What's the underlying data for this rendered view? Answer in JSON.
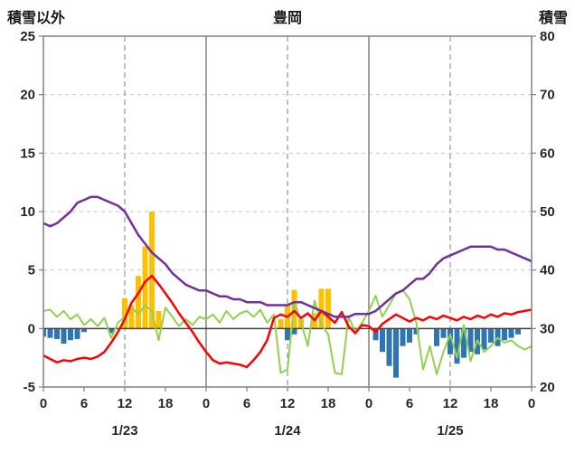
{
  "header": {
    "left_axis_title": "積雪以外",
    "chart_title": "豊岡",
    "right_axis_title": "積雪"
  },
  "colors": {
    "frame": "#808080",
    "midnight_line": "#808080",
    "noon_line": "#808080",
    "hgrid": "#C9C9C9",
    "zero_line": "#404040",
    "tick_label": "#262626",
    "orange_bar": "#FFC000",
    "blue_bar": "#2E75B6",
    "red_line": "#FF0000",
    "green_line": "#92D050",
    "purple_line": "#7030A0"
  },
  "chart_data": {
    "type": "bar+line combo, dual axis, 72-hour weather chart",
    "title": "豊岡",
    "left_axis": {
      "title": "積雪以外",
      "min": -5,
      "max": 25,
      "tick_values": [
        25,
        20,
        15,
        10,
        5,
        0,
        -5
      ],
      "tick_labels": [
        "25",
        "20",
        "15",
        "10",
        "5",
        "0",
        "-5"
      ]
    },
    "right_axis": {
      "title": "積雪",
      "min": 20,
      "max": 80,
      "tick_values": [
        80,
        70,
        60,
        50,
        40,
        30,
        20
      ],
      "tick_labels": [
        "80",
        "70",
        "60",
        "50",
        "40",
        "30",
        "20"
      ]
    },
    "x_axis": {
      "hours_span": 72,
      "tick_step": 6,
      "tick_hours": [
        0,
        6,
        12,
        18,
        24,
        30,
        36,
        42,
        48,
        54,
        60,
        66,
        72
      ],
      "tick_labels": [
        "0",
        "6",
        "12",
        "18",
        "0",
        "6",
        "12",
        "18",
        "0",
        "6",
        "12",
        "18",
        "0"
      ],
      "day_labels": [
        {
          "label": "1/23",
          "hour": 12
        },
        {
          "label": "1/24",
          "hour": 36
        },
        {
          "label": "1/25",
          "hour": 60
        }
      ],
      "noon_grid_hours": [
        12,
        36,
        60
      ],
      "midnight_grid_hours": [
        24,
        48
      ]
    },
    "series": [
      {
        "name": "orange_bars",
        "type": "bar",
        "axis": "left",
        "color": "#FFC000",
        "values": [
          null,
          null,
          null,
          null,
          null,
          null,
          null,
          null,
          null,
          null,
          null,
          null,
          2.6,
          2.0,
          4.5,
          7.0,
          10.0,
          1.5,
          null,
          null,
          null,
          null,
          null,
          null,
          null,
          null,
          null,
          null,
          null,
          null,
          null,
          null,
          null,
          null,
          null,
          0.8,
          2.0,
          3.3,
          0.8,
          null,
          1.3,
          3.4,
          3.4,
          null,
          null,
          null,
          null,
          null,
          null,
          null,
          null,
          null,
          null,
          null,
          null,
          null,
          null,
          null,
          null,
          null,
          null,
          null,
          null,
          null,
          null,
          null,
          null,
          null,
          null,
          null,
          null,
          null,
          null
        ]
      },
      {
        "name": "blue_bars",
        "type": "bar",
        "axis": "left",
        "color": "#2E75B6",
        "values": [
          -0.7,
          -0.8,
          -0.9,
          -1.3,
          -1.0,
          -0.9,
          -0.3,
          null,
          null,
          null,
          -0.4,
          null,
          null,
          null,
          null,
          null,
          null,
          null,
          null,
          null,
          null,
          null,
          null,
          null,
          null,
          null,
          null,
          null,
          null,
          null,
          null,
          null,
          null,
          null,
          null,
          null,
          -1.0,
          -0.5,
          null,
          null,
          null,
          null,
          null,
          null,
          null,
          null,
          null,
          null,
          null,
          -1.0,
          -2.0,
          -3.2,
          -4.2,
          -1.5,
          -1.2,
          -0.5,
          null,
          null,
          -1.5,
          -0.8,
          -2.2,
          -3.0,
          -2.5,
          -2.0,
          -2.2,
          -1.8,
          -1.2,
          -1.5,
          -1.0,
          -0.8,
          -0.5,
          null,
          null
        ]
      },
      {
        "name": "green_line",
        "type": "line",
        "axis": "left",
        "color": "#92D050",
        "values": [
          1.5,
          1.6,
          1.0,
          1.5,
          0.8,
          1.2,
          0.3,
          0.8,
          0.2,
          0.9,
          -0.8,
          0.5,
          1.0,
          1.8,
          1.2,
          2.0,
          1.5,
          -1.0,
          1.8,
          1.0,
          0.2,
          0.8,
          0.3,
          1.0,
          0.8,
          1.2,
          0.5,
          1.5,
          0.8,
          1.3,
          1.5,
          1.0,
          1.6,
          0.5,
          1.2,
          -3.8,
          -3.5,
          2.3,
          0.5,
          -1.5,
          2.4,
          0.3,
          -0.5,
          -3.8,
          -3.9,
          1.0,
          -0.3,
          0.5,
          1.5,
          2.8,
          1.0,
          2.0,
          3.0,
          3.3,
          2.5,
          0.5,
          -3.5,
          -1.5,
          -3.9,
          -2.0,
          -0.5,
          -2.5,
          0.3,
          -2.8,
          -1.0,
          -2.0,
          -1.5,
          -0.8,
          -1.2,
          -1.0,
          -1.5,
          -1.8,
          -1.5
        ]
      },
      {
        "name": "red_line",
        "type": "line",
        "axis": "left",
        "color": "#FF0000",
        "values": [
          -2.3,
          -2.6,
          -2.9,
          -2.7,
          -2.8,
          -2.6,
          -2.5,
          -2.6,
          -2.4,
          -2.0,
          -1.2,
          -0.3,
          0.8,
          2.2,
          3.0,
          4.0,
          4.5,
          3.8,
          3.0,
          2.2,
          1.3,
          0.5,
          -0.3,
          -1.2,
          -2.0,
          -2.7,
          -3.0,
          -2.9,
          -3.0,
          -3.1,
          -3.3,
          -2.7,
          -2.0,
          -1.0,
          0.9,
          1.2,
          1.0,
          1.5,
          0.9,
          1.3,
          0.7,
          1.5,
          1.0,
          0.5,
          1.4,
          0.2,
          -0.4,
          0.3,
          0.2,
          -0.3,
          0.4,
          0.8,
          1.2,
          0.9,
          0.6,
          0.9,
          0.7,
          1.0,
          0.8,
          1.1,
          0.9,
          0.7,
          1.0,
          0.8,
          1.1,
          0.9,
          1.2,
          1.0,
          1.3,
          1.2,
          1.4,
          1.5,
          1.6
        ]
      },
      {
        "name": "purple_line",
        "type": "line",
        "axis": "right",
        "color": "#7030A0",
        "values": [
          48,
          47.5,
          48,
          49,
          50,
          51.5,
          52,
          52.5,
          52.5,
          52,
          51.5,
          51,
          50,
          48,
          46,
          44.5,
          43,
          42,
          41,
          39.5,
          38.5,
          37.5,
          37,
          36.5,
          36.5,
          36,
          35.5,
          35.5,
          35,
          35,
          34.5,
          34.5,
          34.5,
          34,
          34,
          34,
          34,
          34.5,
          34.5,
          34,
          33.5,
          33,
          32.5,
          32,
          32,
          32,
          32.5,
          32.5,
          32.5,
          33,
          34,
          35,
          36,
          36.5,
          37.5,
          38.5,
          38.5,
          39.5,
          41,
          42,
          42.5,
          43,
          43.5,
          44,
          44,
          44,
          44,
          43.5,
          43.5,
          43,
          42.5,
          42,
          41.5
        ]
      }
    ],
    "grid": {
      "horizontal_dashed_at": [
        5,
        10,
        15,
        20
      ],
      "zero_line_at": 0
    },
    "legend": "none"
  }
}
